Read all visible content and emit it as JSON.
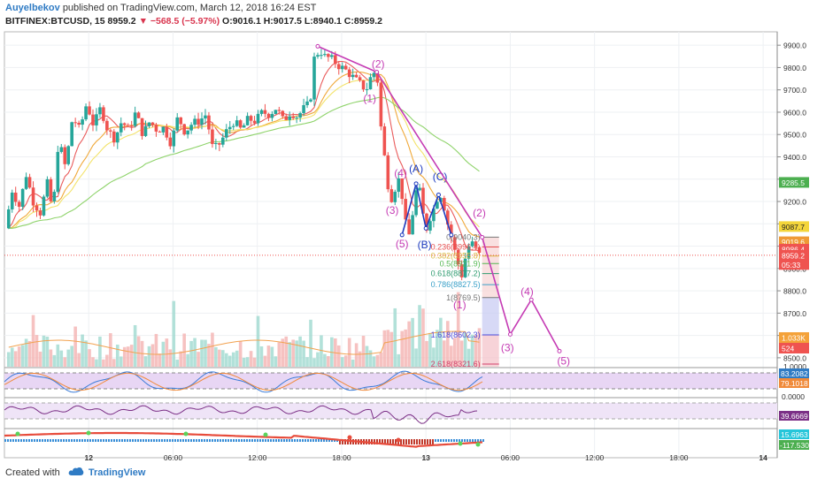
{
  "header": {
    "author": "Auyelbekov",
    "published": "published on TradingView.com, March 12, 2018 16:24 EST",
    "symbol": "BITFINEX:BTCUSD, 15",
    "last": "8959.2",
    "change": "▼ −568.5 (−5.97%)",
    "ohlc": "O:9016.1 H:9017.5 L:8940.1 C:8959.2"
  },
  "footer": {
    "created_with": "Created with",
    "brand": "TradingView"
  },
  "colors": {
    "up": "#26a69a",
    "down": "#ef5350",
    "wave": "#c53bb4",
    "abc": "#1d3bbf"
  },
  "chart_data": {
    "type": "candlestick",
    "y_ticks": [
      "9900.0",
      "9800.0",
      "9700.0",
      "9600.0",
      "9500.0",
      "9400.0",
      "9300.0",
      "9200.0",
      "9100.0",
      "9000.0",
      "8900.0",
      "8800.0",
      "8700.0",
      "8600.0",
      "8500.0"
    ],
    "ylim": [
      8460,
      9960
    ],
    "x_ticks": [
      {
        "label": "12",
        "t": 4
      },
      {
        "label": "06:00",
        "t": 10
      },
      {
        "label": "12:00",
        "t": 16
      },
      {
        "label": "18:00",
        "t": 22
      },
      {
        "label": "13",
        "t": 28
      },
      {
        "label": "06:00",
        "t": 34
      },
      {
        "label": "12:00",
        "t": 40
      },
      {
        "label": "18:00",
        "t": 46
      },
      {
        "label": "14",
        "t": 52
      }
    ],
    "x_range": [
      -2,
      53
    ],
    "candle_hours": 0.25,
    "price_path": [
      [
        -1.7,
        9080
      ],
      [
        -1.2,
        9250
      ],
      [
        -0.7,
        9180
      ],
      [
        -0.2,
        9320
      ],
      [
        0.3,
        9200
      ],
      [
        0.8,
        9150
      ],
      [
        1.3,
        9280
      ],
      [
        1.7,
        9150
      ],
      [
        2.1,
        9480
      ],
      [
        2.6,
        9350
      ],
      [
        3.1,
        9580
      ],
      [
        3.6,
        9520
      ],
      [
        4.1,
        9640
      ],
      [
        4.6,
        9540
      ],
      [
        5.1,
        9620
      ],
      [
        5.6,
        9520
      ],
      [
        6.1,
        9480
      ],
      [
        6.6,
        9560
      ],
      [
        7.1,
        9520
      ],
      [
        7.6,
        9600
      ],
      [
        8.1,
        9500
      ],
      [
        8.6,
        9560
      ],
      [
        9.1,
        9520
      ],
      [
        9.6,
        9530
      ],
      [
        10.1,
        9460
      ],
      [
        10.6,
        9580
      ],
      [
        11.1,
        9510
      ],
      [
        11.6,
        9550
      ],
      [
        12.1,
        9560
      ],
      [
        12.6,
        9590
      ],
      [
        13.1,
        9430
      ],
      [
        13.6,
        9460
      ],
      [
        14.1,
        9520
      ],
      [
        14.6,
        9560
      ],
      [
        15.1,
        9520
      ],
      [
        15.6,
        9570
      ],
      [
        16.1,
        9560
      ],
      [
        16.6,
        9600
      ],
      [
        17.1,
        9590
      ],
      [
        17.6,
        9620
      ],
      [
        18.1,
        9560
      ],
      [
        18.6,
        9600
      ],
      [
        19.1,
        9580
      ],
      [
        19.6,
        9620
      ],
      [
        20.0,
        9640
      ],
      [
        20.3,
        9840
      ],
      [
        20.7,
        9880
      ],
      [
        21.0,
        9850
      ],
      [
        21.5,
        9840
      ],
      [
        22.0,
        9810
      ],
      [
        22.5,
        9790
      ],
      [
        23.0,
        9760
      ],
      [
        23.5,
        9730
      ],
      [
        24.0,
        9700
      ],
      [
        24.4,
        9770
      ],
      [
        24.6,
        9780
      ],
      [
        24.8,
        9740
      ],
      [
        25.0,
        9560
      ],
      [
        25.3,
        9400
      ],
      [
        25.6,
        9250
      ],
      [
        25.9,
        9200
      ],
      [
        26.2,
        9320
      ],
      [
        26.5,
        9250
      ],
      [
        26.8,
        9100
      ],
      [
        27.1,
        9040
      ],
      [
        27.4,
        9200
      ],
      [
        27.7,
        9290
      ],
      [
        28.0,
        9150
      ],
      [
        28.3,
        9080
      ],
      [
        28.6,
        9140
      ],
      [
        28.9,
        9180
      ],
      [
        29.2,
        9250
      ],
      [
        29.5,
        9190
      ],
      [
        29.8,
        9100
      ],
      [
        30.1,
        9030
      ],
      [
        30.4,
        8950
      ],
      [
        30.8,
        8870
      ],
      [
        31.1,
        8960
      ],
      [
        31.4,
        9020
      ],
      [
        31.7,
        9000
      ],
      [
        32.0,
        8960
      ]
    ],
    "ema_lines": [
      {
        "name": "ema-fast",
        "color": "#e95b5b",
        "lag": 1.0
      },
      {
        "name": "ema-mid",
        "color": "#f0a93a",
        "lag": 2.2
      },
      {
        "name": "ema-slow",
        "color": "#f3e36b",
        "lag": 3.5
      },
      {
        "name": "ema-long",
        "color": "#8fd36b",
        "lag": 9
      }
    ],
    "wave_primary": {
      "points": [
        [
          20.3,
          9895
        ],
        [
          24.5,
          9780
        ],
        [
          32.0,
          9040
        ],
        [
          34.0,
          8605
        ],
        [
          35.5,
          8760
        ],
        [
          37.5,
          8530
        ]
      ],
      "labels": [
        {
          "text": "(2)",
          "t": 24.6,
          "p": 9800
        },
        {
          "text": "(1)",
          "t": 24.0,
          "p": 9645
        },
        {
          "text": "(4)",
          "t": 26.2,
          "p": 9310
        },
        {
          "text": "(3)",
          "t": 25.6,
          "p": 9145
        },
        {
          "text": "(5)",
          "t": 26.3,
          "p": 8995
        },
        {
          "text": "(2)",
          "t": 31.8,
          "p": 9133
        },
        {
          "text": "(1)",
          "t": 30.4,
          "p": 8722
        },
        {
          "text": "(3)",
          "t": 33.8,
          "p": 8530
        },
        {
          "text": "(4)",
          "t": 35.2,
          "p": 8780
        },
        {
          "text": "(5)",
          "t": 37.8,
          "p": 8470
        }
      ]
    },
    "wave_abc": {
      "points": [
        [
          26.3,
          9050
        ],
        [
          27.3,
          9280
        ],
        [
          28.0,
          9080
        ],
        [
          28.9,
          9230
        ],
        [
          29.8,
          9050
        ]
      ],
      "labels": [
        {
          "text": "(A)",
          "t": 27.3,
          "p": 9330
        },
        {
          "text": "(B)",
          "t": 27.9,
          "p": 8990
        },
        {
          "text": "(C)",
          "t": 29.0,
          "p": 9295
        }
      ]
    },
    "fib_levels": [
      {
        "label": "0(9040.3)",
        "price": 9040.3,
        "color": "#777777"
      },
      {
        "label": "0.236(8996.4)",
        "price": 8996.4,
        "color": "#e84f4f"
      },
      {
        "label": "0.382(8955.8)",
        "price": 8955.8,
        "color": "#d9b940"
      },
      {
        "label": "0.5(8921.9)",
        "price": 8921.9,
        "color": "#56b854"
      },
      {
        "label": "0.618(8877.2)",
        "price": 8877.2,
        "color": "#2f9c70"
      },
      {
        "label": "0.786(8827.5)",
        "price": 8827.5,
        "color": "#3aa0c8"
      },
      {
        "label": "1(8769.5)",
        "price": 8769.5,
        "color": "#777777"
      },
      {
        "label": "1.618(8602.3)",
        "price": 8602.3,
        "color": "#4a4adb"
      },
      {
        "label": "2.618(8321.6)",
        "price": 8321.6,
        "color": "#d2416c"
      }
    ],
    "price_badges": [
      {
        "text": "9285.5",
        "price": 9285.5,
        "color": "#4caf50"
      },
      {
        "text": "9087.7",
        "price": 9087.7,
        "color": "#f4d53a"
      },
      {
        "text": "9019.6",
        "price": 9019.6,
        "color": "#ef9a36"
      },
      {
        "text": "8986.4",
        "price": 8986.4,
        "color": "#ef5350"
      },
      {
        "text": "8959.2",
        "price": 8959.2,
        "color": "#ef5350"
      },
      {
        "text": "05:33",
        "price": 8918,
        "color": "#ef5350"
      }
    ],
    "volume_badges": [
      {
        "text": "1.033K",
        "color": "#f4a23a"
      },
      {
        "text": "524",
        "color": "#ef5350"
      }
    ],
    "volume_axis_label": "1.0000",
    "stoch": {
      "labels": [
        "83.2082",
        "79.1018"
      ],
      "zero_label": "0.0000"
    },
    "rsi": {
      "label": "39.6669"
    },
    "momentum": {
      "labels": [
        "15.6963",
        "-117.5302"
      ]
    }
  }
}
